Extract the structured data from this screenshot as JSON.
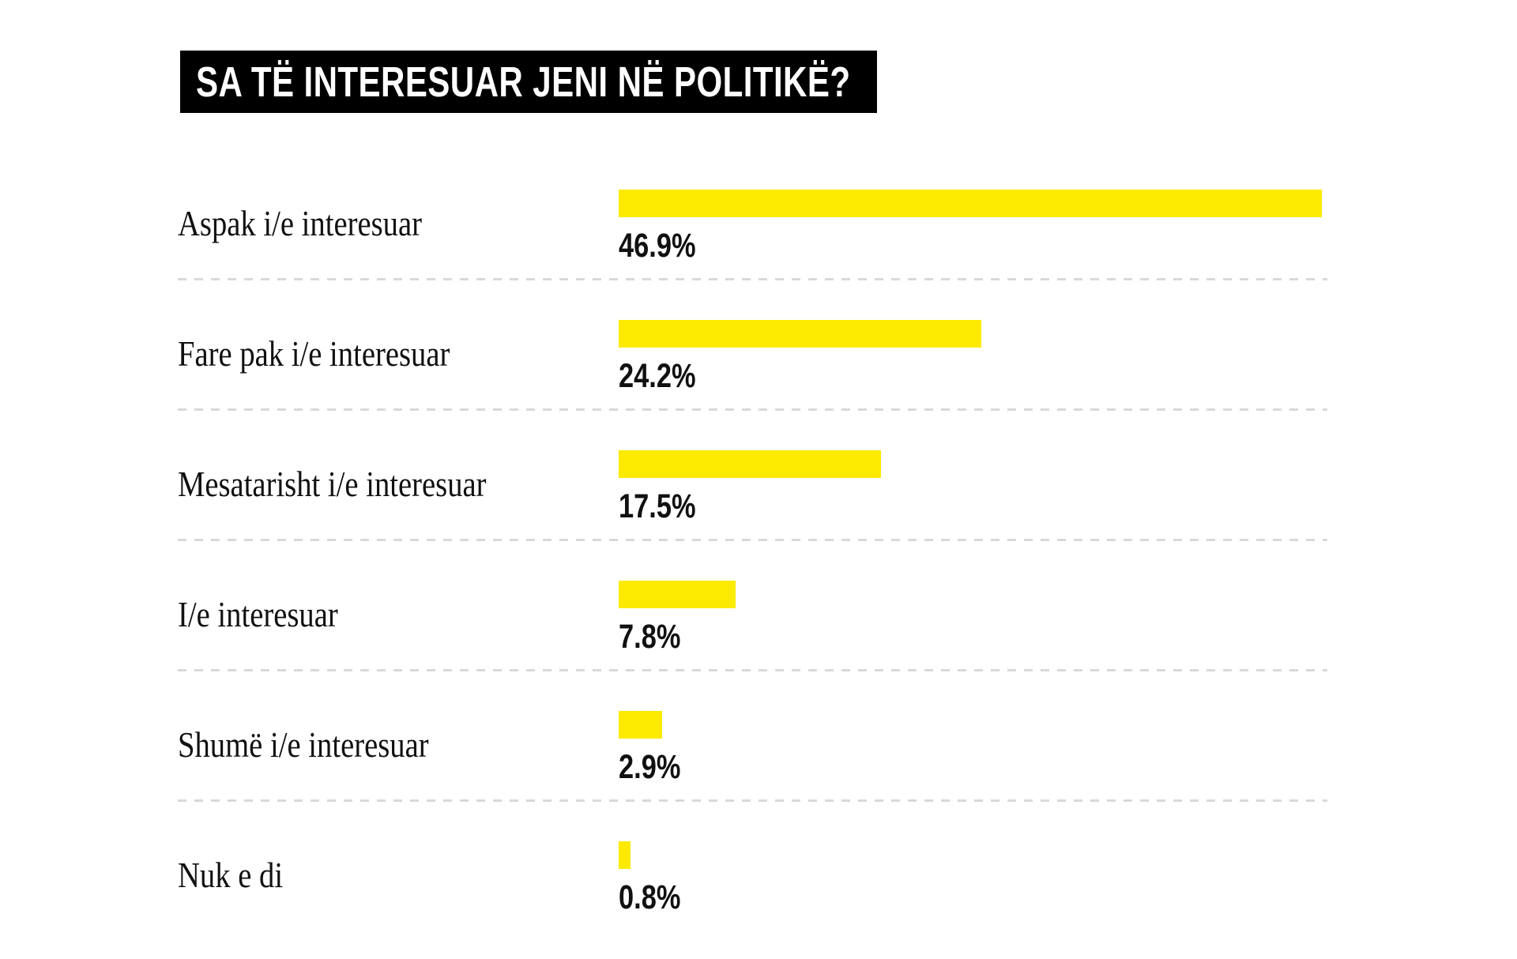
{
  "chart_data": {
    "type": "bar",
    "orientation": "horizontal",
    "title": "SA TË INTERESUAR JENI NË POLITIKË?",
    "categories": [
      "Aspak i/e interesuar",
      "Fare pak i/e interesuar",
      "Mesatarisht i/e interesuar",
      "I/e interesuar",
      "Shumë i/e interesuar",
      "Nuk e di"
    ],
    "values": [
      46.9,
      24.2,
      17.5,
      7.8,
      2.9,
      0.8
    ],
    "value_labels": [
      "46.9%",
      "24.2%",
      "17.5%",
      "7.8%",
      "2.9%",
      "0.8%"
    ],
    "xlim": [
      0,
      46.9
    ],
    "bar_color": "#FCEA00",
    "legend": "none",
    "grid": "dashed horizontal separators between rows"
  },
  "colors": {
    "background": "#FFFFFF",
    "bar": "#FCEA00",
    "title_background": "#000000",
    "title_text": "#FFFFFF",
    "text": "#111111",
    "divider": "#D9D9D9"
  }
}
